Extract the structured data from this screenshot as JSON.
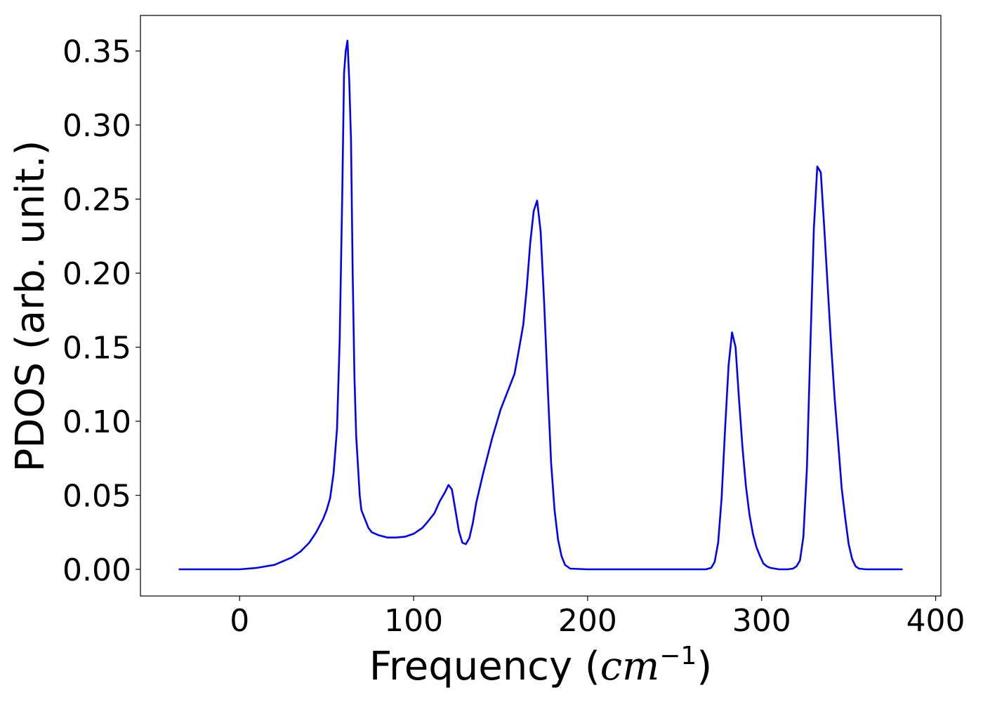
{
  "chart_data": {
    "type": "line",
    "title": "",
    "xlabel": "Frequency (cm⁻¹)",
    "xlabel_parts": {
      "prefix": "Frequency (",
      "var": "cm",
      "sup": "−1",
      "suffix": ")"
    },
    "ylabel": "PDOS (arb. unit.)",
    "xlim": [
      -57,
      403
    ],
    "ylim": [
      -0.018,
      0.374
    ],
    "xticks": [
      0,
      100,
      200,
      300,
      400
    ],
    "yticks": [
      0.0,
      0.05,
      0.1,
      0.15,
      0.2,
      0.25,
      0.3,
      0.35
    ],
    "xtick_labels": [
      "0",
      "100",
      "200",
      "300",
      "400"
    ],
    "ytick_labels": [
      "0.00",
      "0.05",
      "0.10",
      "0.15",
      "0.20",
      "0.25",
      "0.30",
      "0.35"
    ],
    "grid": false,
    "legend": "none",
    "series": [
      {
        "color": "#0000ff",
        "x": [
          -35,
          -10,
          0,
          10,
          20,
          30,
          35,
          40,
          44,
          48,
          50,
          52,
          54,
          56,
          57.5,
          59,
          60,
          61,
          62,
          63,
          64,
          65,
          66,
          67,
          68,
          69,
          70,
          72,
          74,
          76,
          80,
          85,
          90,
          95,
          100,
          105,
          108,
          112,
          115,
          118,
          120,
          122,
          124,
          126,
          128,
          130,
          132,
          134,
          136,
          140,
          145,
          150,
          155,
          158,
          160,
          163,
          165,
          167,
          169,
          171,
          173,
          175,
          177,
          179,
          181,
          183,
          185,
          187,
          190,
          200,
          250,
          268,
          271,
          273,
          275,
          277,
          279,
          281,
          283,
          285,
          287,
          289,
          291,
          293,
          295,
          297,
          299,
          301,
          303,
          305,
          310,
          315,
          318,
          320,
          322,
          324,
          326,
          328,
          330,
          332,
          334,
          336,
          338,
          340,
          342,
          344,
          346,
          348,
          350,
          352,
          354,
          356,
          360,
          381
        ],
        "y": [
          0.0,
          0.0,
          0.0,
          0.001,
          0.003,
          0.008,
          0.012,
          0.018,
          0.025,
          0.034,
          0.04,
          0.048,
          0.065,
          0.095,
          0.155,
          0.255,
          0.335,
          0.35,
          0.357,
          0.33,
          0.29,
          0.2,
          0.13,
          0.09,
          0.07,
          0.05,
          0.04,
          0.034,
          0.028,
          0.025,
          0.023,
          0.0215,
          0.0215,
          0.022,
          0.024,
          0.028,
          0.032,
          0.038,
          0.046,
          0.052,
          0.057,
          0.054,
          0.04,
          0.026,
          0.018,
          0.017,
          0.021,
          0.031,
          0.045,
          0.065,
          0.088,
          0.108,
          0.123,
          0.132,
          0.145,
          0.165,
          0.19,
          0.22,
          0.242,
          0.249,
          0.228,
          0.18,
          0.125,
          0.072,
          0.04,
          0.02,
          0.009,
          0.003,
          0.0005,
          0.0,
          0.0,
          0.0,
          0.001,
          0.005,
          0.018,
          0.048,
          0.095,
          0.138,
          0.16,
          0.15,
          0.115,
          0.082,
          0.056,
          0.037,
          0.024,
          0.015,
          0.009,
          0.004,
          0.002,
          0.001,
          0.0,
          0.0,
          0.0005,
          0.002,
          0.006,
          0.022,
          0.068,
          0.15,
          0.23,
          0.272,
          0.268,
          0.23,
          0.19,
          0.15,
          0.115,
          0.085,
          0.055,
          0.035,
          0.017,
          0.007,
          0.002,
          0.0005,
          0.0,
          0.0
        ]
      }
    ]
  }
}
